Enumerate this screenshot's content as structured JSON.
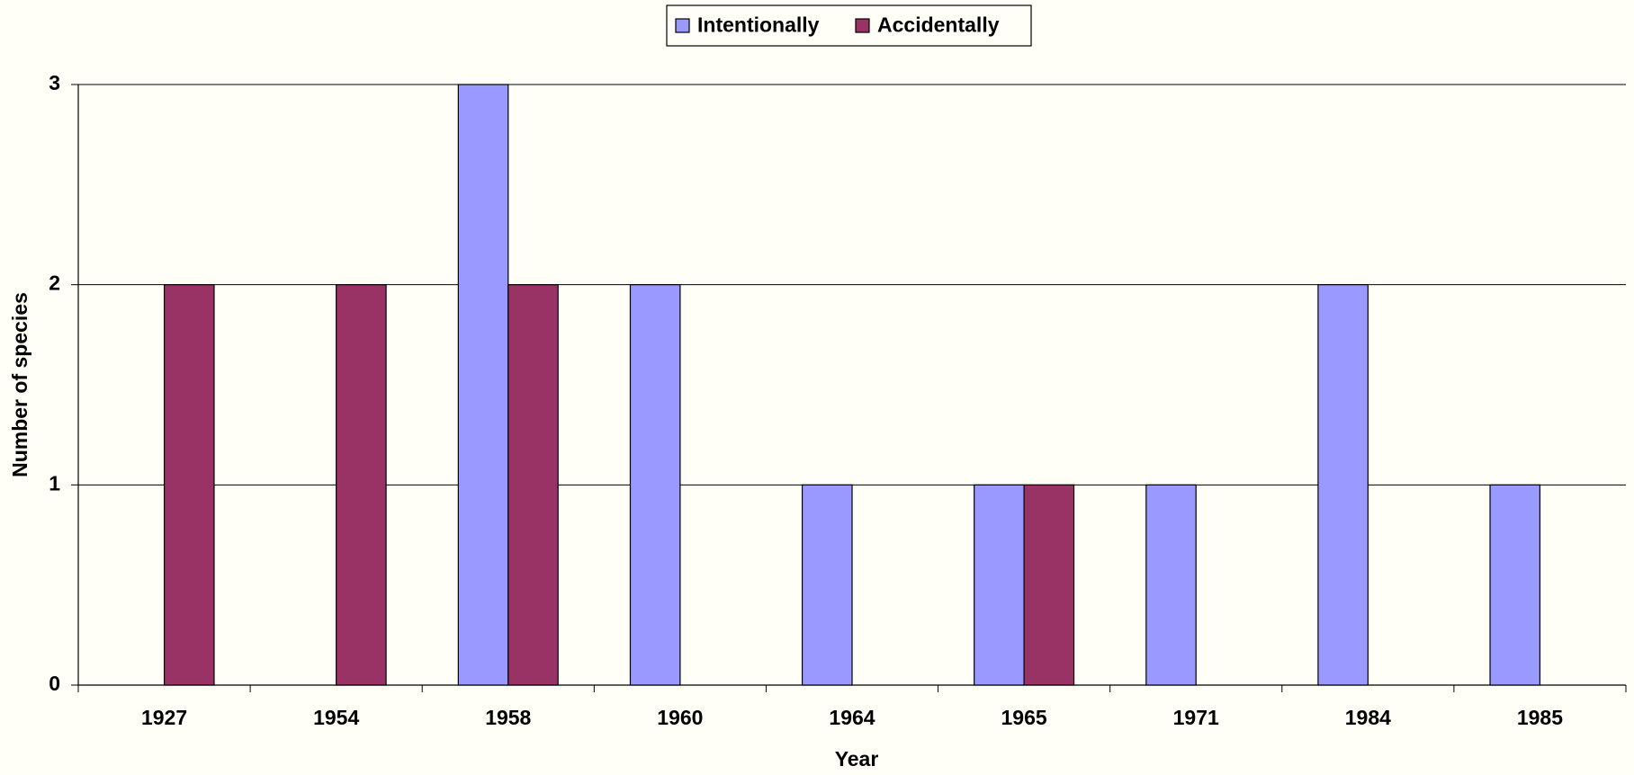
{
  "chart_data": {
    "type": "bar",
    "categories": [
      "1927",
      "1954",
      "1958",
      "1960",
      "1964",
      "1965",
      "1971",
      "1984",
      "1985"
    ],
    "series": [
      {
        "name": "Intentionally",
        "color": "#9999ff",
        "values": [
          0,
          0,
          3,
          2,
          1,
          1,
          1,
          2,
          1
        ]
      },
      {
        "name": "Accidentally",
        "color": "#993366",
        "values": [
          2,
          2,
          2,
          0,
          0,
          1,
          0,
          0,
          0
        ]
      }
    ],
    "xlabel": "Year",
    "ylabel": "Number of species",
    "ylim": [
      0,
      3
    ],
    "yticks": [
      0,
      1,
      2,
      3
    ],
    "grid": true,
    "legend": "top"
  }
}
